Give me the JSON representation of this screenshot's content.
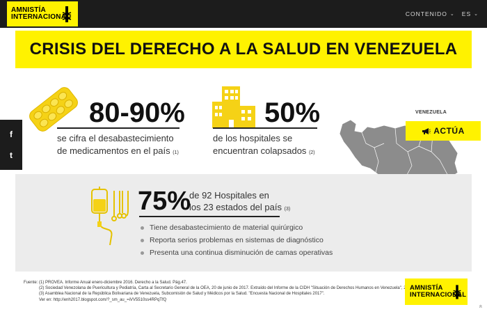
{
  "header": {
    "logo_line1": "AMNISTÍA",
    "logo_line2": "INTERNACIONAL",
    "nav": [
      {
        "label": "CONTENIDO",
        "icon": "chevron-down-icon"
      },
      {
        "label": "ES",
        "icon": "chevron-down-icon"
      }
    ]
  },
  "banner": {
    "title": "CRISIS DEL DERECHO A LA SALUD EN VENEZUELA"
  },
  "social": {
    "facebook": "f",
    "twitter": "t"
  },
  "stats": {
    "medicines": {
      "value": "80-90%",
      "line1": "se cifra el desabastecimiento",
      "line2": "de medicamentos en el país",
      "ref": "(1)",
      "icon": "pill-blister-icon"
    },
    "hospitals": {
      "value": "50%",
      "line1": "de los hospitales se",
      "line2": "encuentran colapsados",
      "ref": "(2)",
      "icon": "hospital-buildings-icon"
    },
    "network": {
      "value": "75%",
      "line1": "de 92 Hospitales en",
      "line2": "los 23 estados del país",
      "ref": "(3)",
      "icon": "iv-bag-surgical-tools-icon",
      "bullets": [
        "Tiene desabastecimiento de material quirúrgico",
        "Reporta serios problemas en sistemas de diagnóstico",
        "Presenta una continua disminución de camas operativas"
      ]
    }
  },
  "map": {
    "label": "VENEZUELA",
    "icon": "venezuela-map-icon",
    "map_color": "#8c8c8c"
  },
  "action": {
    "label": "ACTÚA",
    "icon": "megaphone-icon"
  },
  "footnotes": [
    "Fuente: (1) PROVEA. Informe Anual enero-diciembre 2016. Derecho a la Salud. Pág.47.",
    "(2) Sociedad Venezolana de Puericultura y Pediatría, Carta al Secretario General de la OEA, 20 de junio de 2017. Extraído del Informe de la CIDH \"Situación de Derechos Humanos en Venezuela\", 2017.",
    "(3) Asamblea Nacional de la República Bolivariana de Venezuela, Subcomisión de Salud y Médicos por la Salud. \"Encuesta Nacional de Hospitales 2017\".",
    "Ver en: http://enh2017.blogspot.com/?_sm_au_=iVV5510ss4RPqTfQ"
  ],
  "footer_logo": {
    "line1": "AMNISTÍA",
    "line2": "INTERNACIONAL"
  },
  "scroll_top": {
    "icon": "double-chevron-up-icon",
    "glyph": "«"
  },
  "colors": {
    "brand_yellow": "#fff200",
    "dark": "#1c1c1c",
    "panel_gray": "#ececec"
  }
}
